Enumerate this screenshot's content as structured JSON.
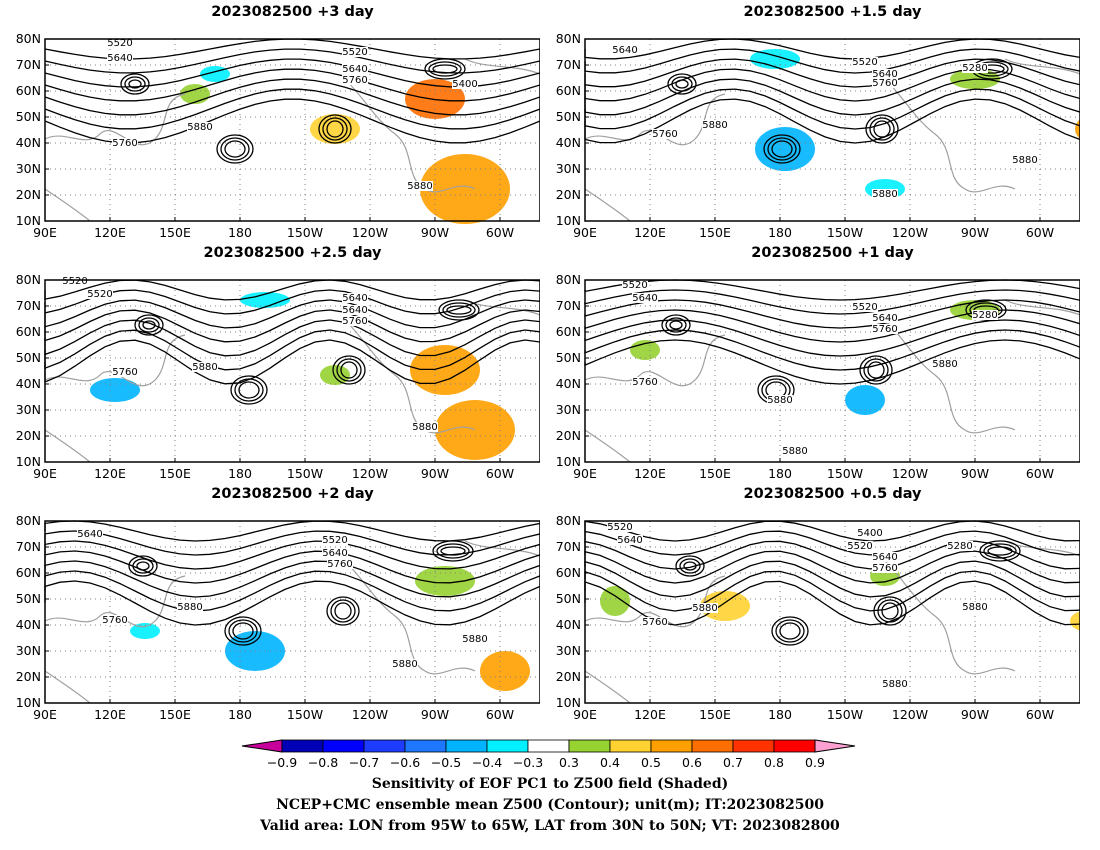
{
  "panels": [
    {
      "title": "2023082500  +3 day",
      "lead_days": 3,
      "contour_labels": [
        "5520",
        "5520",
        "5640",
        "5640",
        "5760",
        "5760",
        "5400",
        "5880",
        "5880"
      ]
    },
    {
      "title": "2023082500  +1.5 day",
      "lead_days": 1.5,
      "contour_labels": [
        "5640",
        "5520",
        "5640",
        "5760",
        "5280",
        "5880",
        "5760",
        "5880",
        "5880"
      ]
    },
    {
      "title": "2023082500  +2.5 day",
      "lead_days": 2.5,
      "contour_labels": [
        "5520",
        "5640",
        "5520",
        "5640",
        "5760",
        "5760",
        "5880",
        "5880"
      ]
    },
    {
      "title": "2023082500  +1 day",
      "lead_days": 1,
      "contour_labels": [
        "5520",
        "5640",
        "5520",
        "5640",
        "5760",
        "5280",
        "5760",
        "5880",
        "5880",
        "5880"
      ]
    },
    {
      "title": "2023082500  +2 day",
      "lead_days": 2,
      "contour_labels": [
        "5640",
        "5520",
        "5640",
        "5760",
        "5760",
        "5880",
        "5880",
        "5880"
      ]
    },
    {
      "title": "2023082500  +0.5 day",
      "lead_days": 0.5,
      "contour_labels": [
        "5520",
        "5640",
        "5400",
        "5520",
        "5640",
        "5760",
        "5280",
        "5880",
        "5760",
        "5880",
        "5880"
      ]
    }
  ],
  "axes": {
    "lat_labels": [
      "80N",
      "70N",
      "60N",
      "50N",
      "40N",
      "30N",
      "20N",
      "10N"
    ],
    "lon_labels": [
      "90E",
      "120E",
      "150E",
      "180",
      "150W",
      "120W",
      "90W",
      "60W"
    ],
    "lon_range": [
      "90E",
      "45W"
    ],
    "lat_range": [
      "10N",
      "80N"
    ],
    "gridlines": "dotted"
  },
  "colorbar": {
    "values": [
      "-0.9",
      "-0.8",
      "-0.7",
      "-0.6",
      "-0.5",
      "-0.4",
      "-0.3",
      "0.3",
      "0.4",
      "0.5",
      "0.6",
      "0.7",
      "0.8",
      "0.9"
    ],
    "colors": [
      "#c8009b",
      "#0000b4",
      "#0000ff",
      "#1e3cff",
      "#1e78ff",
      "#00b4ff",
      "#00f0ff",
      "#ffffff",
      "#96d232",
      "#ffd232",
      "#ffa000",
      "#ff6e00",
      "#ff3200",
      "#ff0000",
      "#ffa0d2"
    ]
  },
  "footer": {
    "line1": "Sensitivity of EOF PC1 to Z500 field (Shaded)",
    "line2": "NCEP+CMC ensemble mean Z500 (Contour); unit(m); IT:2023082500",
    "line3": "Valid area: LON from 95W to 65W, LAT from 30N to 50N; VT: 2023082800"
  }
}
